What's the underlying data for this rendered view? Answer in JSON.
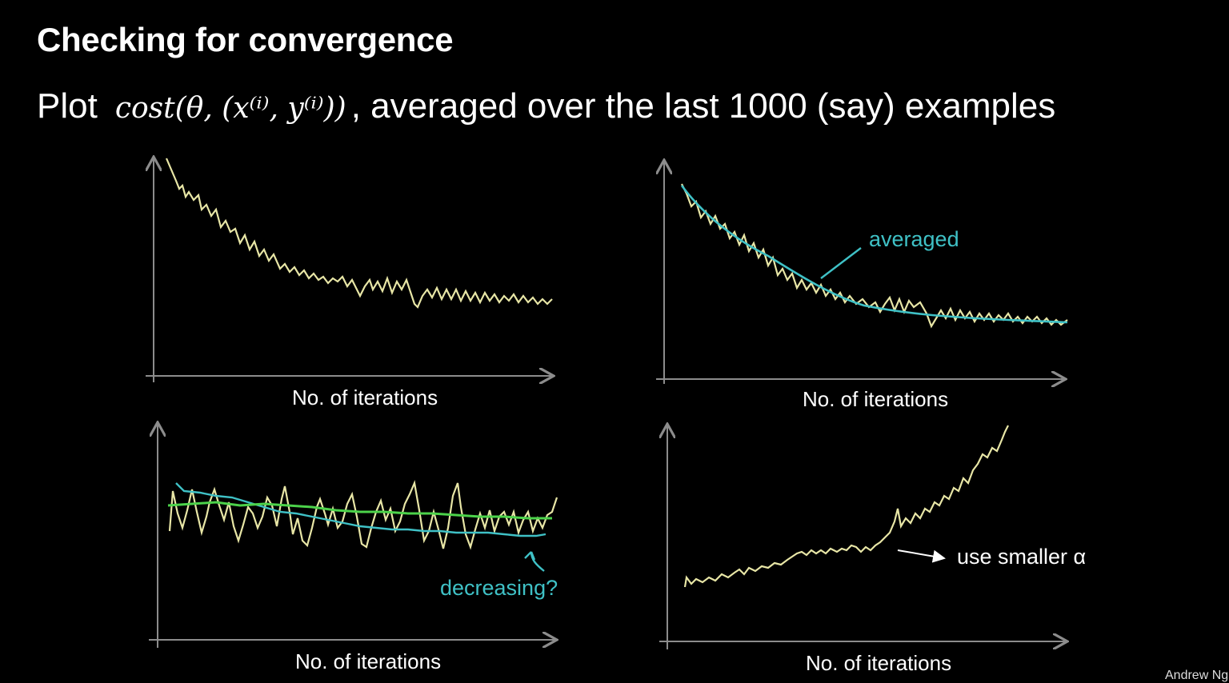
{
  "slide": {
    "title": "Checking for convergence",
    "subtitle_prefix": "Plot",
    "formula": "cost(θ, (x⁽ⁱ⁾, y⁽ⁱ⁾))",
    "subtitle_suffix": ", averaged over the last 1000 (say) examples",
    "footer": "Andrew Ng"
  },
  "plots": [
    {
      "xlabel": "No. of iterations"
    },
    {
      "xlabel": "No. of iterations",
      "annotation": "averaged"
    },
    {
      "xlabel": "No. of iterations",
      "annotation": "decreasing?"
    },
    {
      "xlabel": "No. of iterations",
      "annotation": "use smaller α"
    }
  ],
  "colors": {
    "raw_curve": "#e8e6a6",
    "averaged_curve": "#3fc1c6",
    "large_avg_curve": "#4cd24a",
    "axis": "#8c8c8c"
  }
}
